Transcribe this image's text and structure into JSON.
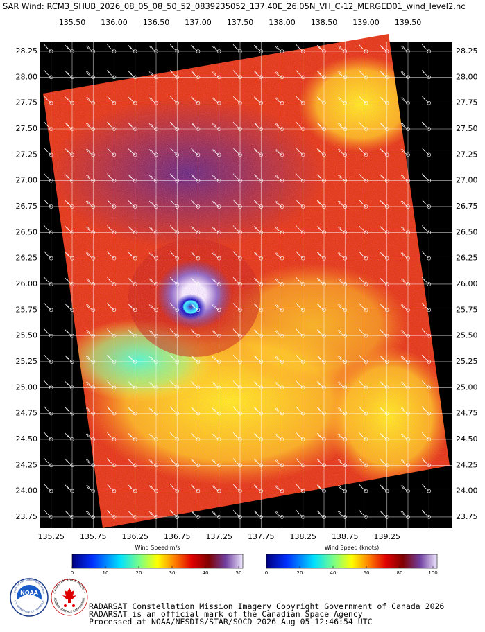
{
  "title": "SAR Wind: RCM3_SHUB_2026_08_05_08_50_52_0839235052_137.40E_26.05N_VH_C-12_MERGED01_wind_level2.nc",
  "axes": {
    "top_lon": [
      "135.50",
      "136.00",
      "136.50",
      "137.00",
      "137.50",
      "138.00",
      "138.50",
      "139.00",
      "139.50"
    ],
    "bottom_lon": [
      "135.25",
      "135.75",
      "136.25",
      "136.75",
      "137.25",
      "137.75",
      "138.25",
      "138.75",
      "139.25"
    ],
    "left_lat": [
      "28.25",
      "28.00",
      "27.75",
      "27.50",
      "27.25",
      "27.00",
      "26.75",
      "26.50",
      "26.25",
      "26.00",
      "25.75",
      "25.50",
      "25.25",
      "25.00",
      "24.75",
      "24.50",
      "24.25",
      "24.00",
      "23.75"
    ],
    "right_lat": [
      "28.25",
      "28.00",
      "27.75",
      "27.50",
      "27.25",
      "27.00",
      "26.75",
      "26.50",
      "26.25",
      "26.00",
      "25.75",
      "25.50",
      "25.25",
      "25.00",
      "24.75",
      "24.50",
      "24.25",
      "24.00",
      "23.75"
    ]
  },
  "colorbars": [
    {
      "label": "Wind Speed m/s",
      "ticks": [
        0,
        10,
        20,
        30,
        40,
        50
      ]
    },
    {
      "label": "Wind Speed (knots)",
      "ticks": [
        0,
        20,
        40,
        60,
        80,
        100
      ]
    }
  ],
  "logos": {
    "noaa": {
      "name": "NOAA",
      "ring_top": "NATIONAL OCEANIC AND ATMOSPHERIC ADMINISTRATION",
      "ring_bottom": "U.S. DEPARTMENT OF COMMERCE"
    },
    "csa": {
      "ring_top": "CANADIAN SPACE AGENCY",
      "ring_bottom": "AGENCE SPATIALE CANADIENNE"
    }
  },
  "footer": {
    "lines": [
      "RADARSAT Constellation Mission Imagery Copyright Government of Canada 2026",
      "RADARSAT is an official mark of the Canadian Space Agency",
      "Processed at NOAA/NESDIS/STAR/SOCD 2026 Aug 05 12:46:54 UTC"
    ]
  }
}
